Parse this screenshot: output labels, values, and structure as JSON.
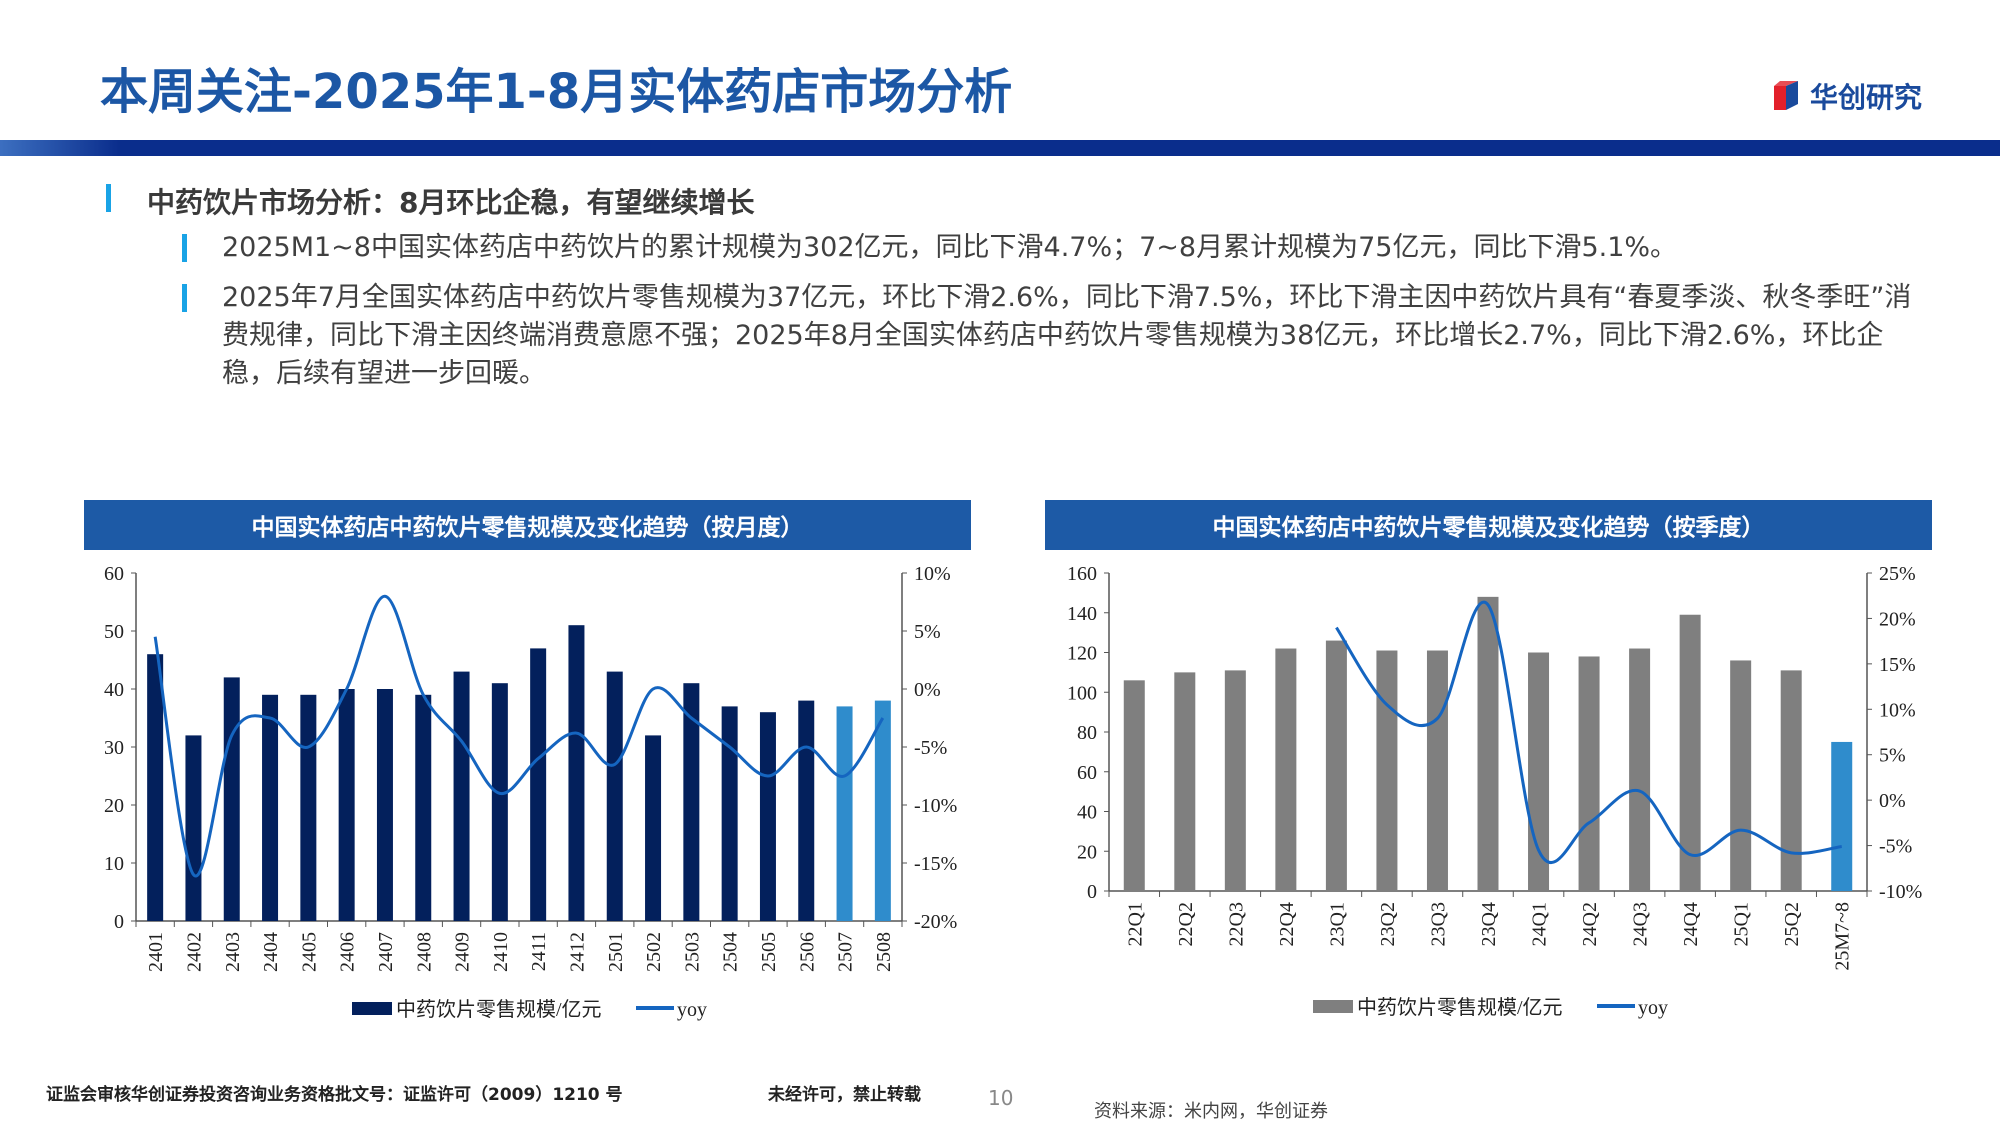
{
  "header": {
    "title": "本周关注-2025年1-8月实体药店市场分析",
    "logo_text": "华创研究"
  },
  "section": {
    "heading": "中药饮片市场分析：8月环比企稳，有望继续增长",
    "bullets": [
      "2025M1~8中国实体药店中药饮片的累计规模为302亿元，同比下滑4.7%；7~8月累计规模为75亿元，同比下滑5.1%。",
      "2025年7月全国实体药店中药饮片零售规模为37亿元，环比下滑2.6%，同比下滑7.5%，环比下滑主因中药饮片具有“春夏季淡、秋冬季旺”消费规律，同比下滑主因终端消费意愿不强；2025年8月全国实体药店中药饮片零售规模为38亿元，环比增长2.7%，同比下滑2.6%，环比企稳，后续有望进一步回暖。"
    ]
  },
  "colors": {
    "title": "#1c57a5",
    "band": "#0a2d8c",
    "chart_header": "#1d5aa6",
    "bar_navy": "#03205c",
    "bar_gray": "#7f7f7f",
    "bar_highlight": "#2f8ccc",
    "line": "#1565c0",
    "marker": "#19a3e6"
  },
  "chart_data": [
    {
      "type": "bar+line",
      "title": "中国实体药店中药饮片零售规模及变化趋势（按月度）",
      "categories": [
        "2401",
        "2402",
        "2403",
        "2404",
        "2405",
        "2406",
        "2407",
        "2408",
        "2409",
        "2410",
        "2411",
        "2412",
        "2501",
        "2502",
        "2503",
        "2504",
        "2505",
        "2506",
        "2507",
        "2508"
      ],
      "series": [
        {
          "name": "中药饮片零售规模/亿元",
          "type": "bar",
          "axis": "left",
          "values": [
            46,
            32,
            42,
            39,
            39,
            40,
            40,
            39,
            43,
            41,
            47,
            51,
            43,
            32,
            41,
            37,
            36,
            38,
            37,
            38
          ],
          "highlight": [
            "2507",
            "2508"
          ]
        },
        {
          "name": "yoy",
          "type": "line",
          "axis": "right",
          "values": [
            4.5,
            -16,
            -4,
            -2.5,
            -5,
            0,
            8,
            -0.5,
            -4.5,
            -9,
            -6,
            -3.8,
            -6.5,
            0,
            -2.5,
            -5,
            -7.5,
            -5,
            -7.5,
            -2.5
          ]
        }
      ],
      "y_left": {
        "min": 0,
        "max": 60,
        "ticks": [
          "0",
          "10",
          "20",
          "30",
          "40",
          "50",
          "60"
        ]
      },
      "y_right": {
        "min": -20,
        "max": 10,
        "ticks": [
          "-20%",
          "-15%",
          "-10%",
          "-5%",
          "0%",
          "5%",
          "10%"
        ]
      },
      "legend": "bottom",
      "grid": false
    },
    {
      "type": "bar+line",
      "title": "中国实体药店中药饮片零售规模及变化趋势（按季度）",
      "categories": [
        "22Q1",
        "22Q2",
        "22Q3",
        "22Q4",
        "23Q1",
        "23Q2",
        "23Q3",
        "23Q4",
        "24Q1",
        "24Q2",
        "24Q3",
        "24Q4",
        "25Q1",
        "25Q2",
        "25M7~8"
      ],
      "series": [
        {
          "name": "中药饮片零售规模/亿元",
          "type": "bar",
          "axis": "left",
          "values": [
            106,
            110,
            111,
            122,
            126,
            121,
            121,
            148,
            120,
            118,
            122,
            139,
            116,
            111,
            75
          ],
          "highlight": [
            "25M7~8"
          ]
        },
        {
          "name": "yoy",
          "type": "line",
          "axis": "right",
          "values": [
            null,
            null,
            null,
            null,
            19,
            10.5,
            9,
            21.5,
            -5.5,
            -2.5,
            1,
            -6,
            -3.3,
            -5.8,
            -5.1
          ]
        }
      ],
      "y_left": {
        "min": 0,
        "max": 160,
        "ticks": [
          "0",
          "20",
          "40",
          "60",
          "80",
          "100",
          "120",
          "140",
          "160"
        ]
      },
      "y_right": {
        "min": -10,
        "max": 25,
        "ticks": [
          "-10%",
          "-5%",
          "0%",
          "5%",
          "10%",
          "15%",
          "20%",
          "25%"
        ]
      },
      "legend": "bottom",
      "grid": false
    }
  ],
  "footer": {
    "license": "证监会审核华创证券投资咨询业务资格批文号：证监许可（2009）1210 号",
    "notice": "未经许可，禁止转载",
    "page": "10",
    "source": "资料来源：米内网，华创证券"
  }
}
